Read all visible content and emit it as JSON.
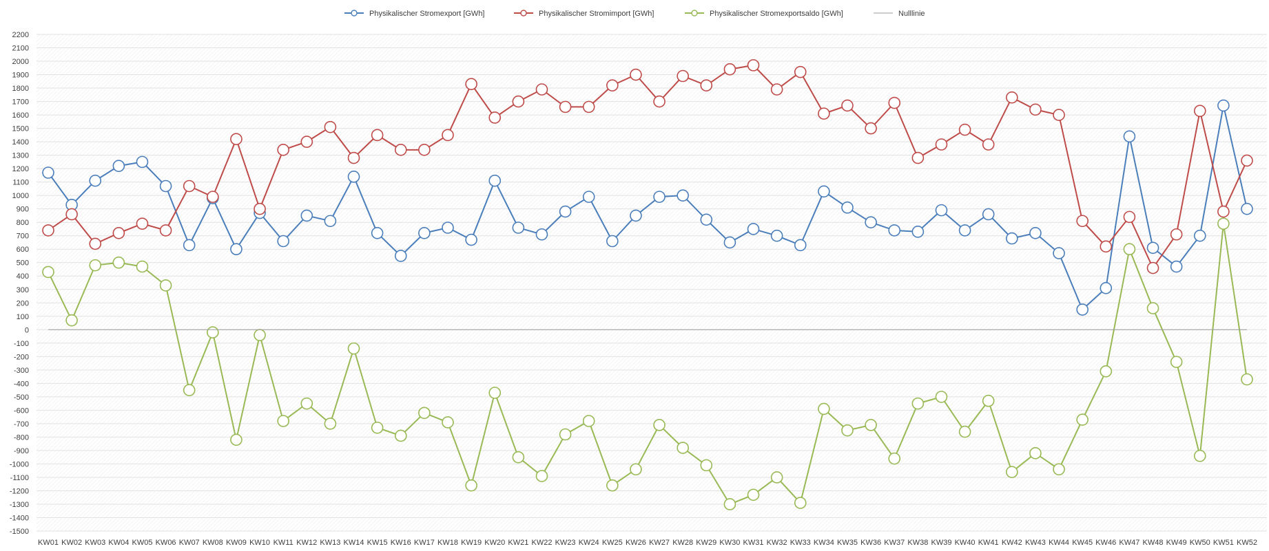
{
  "chart_data": {
    "type": "line",
    "title": "",
    "xlabel": "",
    "ylabel": "",
    "ylim": [
      -1500,
      2200
    ],
    "ytick_step": 100,
    "grid": true,
    "legend_position": "top-center",
    "categories": [
      "KW01",
      "KW02",
      "KW03",
      "KW04",
      "KW05",
      "KW06",
      "KW07",
      "KW08",
      "KW09",
      "KW10",
      "KW11",
      "KW12",
      "KW13",
      "KW14",
      "KW15",
      "KW16",
      "KW17",
      "KW18",
      "KW19",
      "KW20",
      "KW21",
      "KW22",
      "KW23",
      "KW24",
      "KW25",
      "KW26",
      "KW27",
      "KW28",
      "KW29",
      "KW30",
      "KW31",
      "KW32",
      "KW33",
      "KW34",
      "KW35",
      "KW36",
      "KW37",
      "KW38",
      "KW39",
      "KW40",
      "KW41",
      "KW42",
      "KW43",
      "KW44",
      "KW45",
      "KW46",
      "KW47",
      "KW48",
      "KW49",
      "KW50",
      "KW51",
      "KW52"
    ],
    "series": [
      {
        "name": "Physikalischer Stromexport [GWh]",
        "color": "#4a7ebb",
        "values": [
          1170,
          930,
          1110,
          1220,
          1250,
          1070,
          630,
          980,
          600,
          870,
          660,
          850,
          810,
          1140,
          720,
          550,
          720,
          760,
          670,
          1110,
          760,
          710,
          880,
          990,
          660,
          850,
          990,
          1000,
          820,
          650,
          750,
          700,
          630,
          1030,
          910,
          800,
          740,
          730,
          890,
          740,
          860,
          680,
          720,
          570,
          150,
          310,
          1440,
          610,
          470,
          700,
          1670,
          900
        ]
      },
      {
        "name": "Physikalischer Stromimport [GWh]",
        "color": "#be4b48",
        "values": [
          740,
          860,
          640,
          720,
          790,
          740,
          1070,
          990,
          1420,
          900,
          1340,
          1400,
          1510,
          1280,
          1450,
          1340,
          1340,
          1450,
          1830,
          1580,
          1700,
          1790,
          1660,
          1660,
          1820,
          1900,
          1700,
          1890,
          1820,
          1940,
          1970,
          1790,
          1920,
          1610,
          1670,
          1500,
          1690,
          1280,
          1380,
          1490,
          1380,
          1730,
          1640,
          1600,
          810,
          620,
          840,
          460,
          710,
          1630,
          880,
          1260
        ]
      },
      {
        "name": "Physikalischer Stromexportsaldo [GWh]",
        "color": "#98b954",
        "values": [
          430,
          70,
          480,
          500,
          470,
          330,
          -450,
          -20,
          -820,
          -40,
          -680,
          -550,
          -700,
          -140,
          -730,
          -790,
          -620,
          -690,
          -1160,
          -470,
          -950,
          -1090,
          -780,
          -680,
          -1160,
          -1040,
          -710,
          -880,
          -1010,
          -1300,
          -1230,
          -1100,
          -1290,
          -590,
          -750,
          -710,
          -960,
          -550,
          -500,
          -760,
          -530,
          -1060,
          -920,
          -1040,
          -670,
          -310,
          600,
          160,
          -240,
          -940,
          790,
          -370
        ]
      },
      {
        "name": "Nulllinie",
        "color": "#9a9a9a",
        "values": [
          0,
          0,
          0,
          0,
          0,
          0,
          0,
          0,
          0,
          0,
          0,
          0,
          0,
          0,
          0,
          0,
          0,
          0,
          0,
          0,
          0,
          0,
          0,
          0,
          0,
          0,
          0,
          0,
          0,
          0,
          0,
          0,
          0,
          0,
          0,
          0,
          0,
          0,
          0,
          0,
          0,
          0,
          0,
          0,
          0,
          0,
          0,
          0,
          0,
          0,
          0,
          0
        ]
      }
    ]
  }
}
